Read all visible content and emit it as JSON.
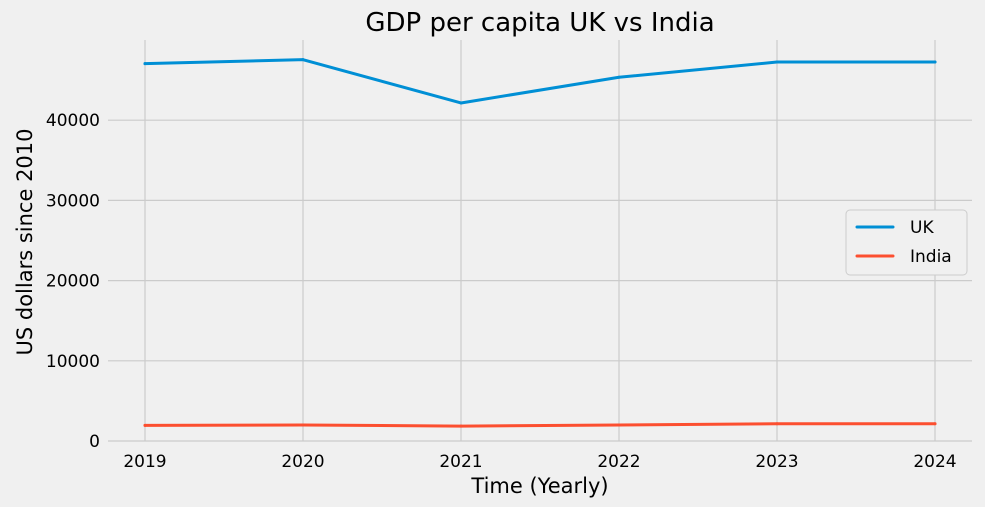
{
  "chart_data": {
    "type": "line",
    "title": "GDP per capita UK vs India",
    "xlabel": "Time (Yearly)",
    "ylabel": "US dollars since 2010",
    "x": [
      2019,
      2020,
      2021,
      2022,
      2023,
      2024
    ],
    "x_tick_labels": [
      "2019",
      "2020",
      "2021",
      "2022",
      "2023",
      "2024"
    ],
    "y_ticks": [
      0,
      10000,
      20000,
      30000,
      40000
    ],
    "y_tick_labels": [
      "0",
      "10000",
      "20000",
      "30000",
      "40000"
    ],
    "ylim": [
      0,
      50000
    ],
    "grid": true,
    "legend_position": "center-right",
    "series": [
      {
        "name": "UK",
        "color": "#008fd5",
        "values": [
          47050,
          47550,
          42150,
          45350,
          47250,
          47250
        ]
      },
      {
        "name": "India",
        "color": "#fc4f30",
        "values": [
          1950,
          2000,
          1850,
          2000,
          2150,
          2150
        ]
      }
    ]
  }
}
